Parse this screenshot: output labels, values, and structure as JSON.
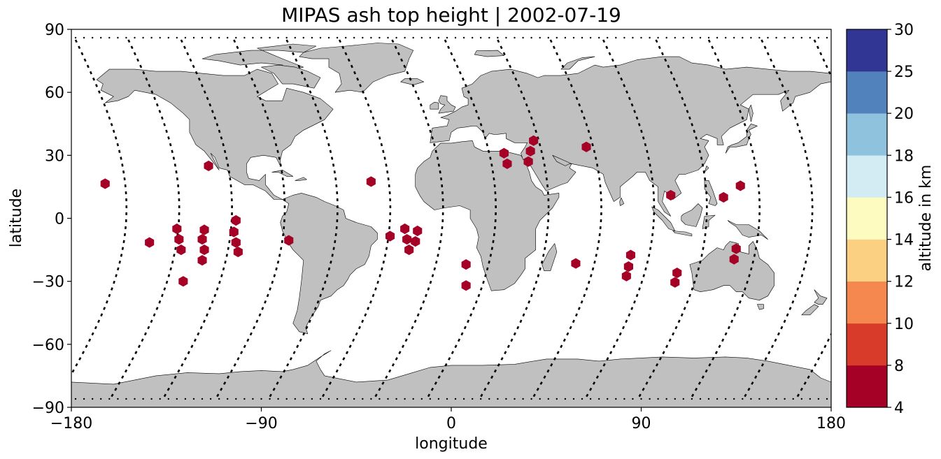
{
  "title": "MIPAS ash top height | 2002-07-19",
  "chart_data": {
    "type": "scatter",
    "title": "MIPAS ash top height | 2002-07-19",
    "xlabel": "longitude",
    "ylabel": "latitude",
    "xlim": [
      -180,
      180
    ],
    "ylim": [
      -90,
      90
    ],
    "xticks": [
      {
        "value": -180,
        "label": "−180"
      },
      {
        "value": -90,
        "label": "−90"
      },
      {
        "value": 0,
        "label": "0"
      },
      {
        "value": 90,
        "label": "90"
      },
      {
        "value": 180,
        "label": "180"
      }
    ],
    "yticks": [
      {
        "value": 90,
        "label": "90"
      },
      {
        "value": 60,
        "label": "60"
      },
      {
        "value": 30,
        "label": "30"
      },
      {
        "value": 0,
        "label": "0"
      },
      {
        "value": -30,
        "label": "−30"
      },
      {
        "value": -60,
        "label": "−60"
      },
      {
        "value": -90,
        "label": "−90"
      }
    ],
    "grid": false,
    "land_color": "#c0c0c0",
    "track_color": "#000000",
    "marker": "hexagon",
    "marker_color": "#a50026",
    "ash_points": [
      {
        "lon": -164,
        "lat": 16.5
      },
      {
        "lon": -143,
        "lat": -11.5
      },
      {
        "lon": -130,
        "lat": -5
      },
      {
        "lon": -129,
        "lat": -10
      },
      {
        "lon": -128,
        "lat": -15
      },
      {
        "lon": -127,
        "lat": -30
      },
      {
        "lon": -117,
        "lat": -5.5
      },
      {
        "lon": -118,
        "lat": -10
      },
      {
        "lon": -117,
        "lat": -15
      },
      {
        "lon": -118,
        "lat": -20
      },
      {
        "lon": -115,
        "lat": 25
      },
      {
        "lon": -102,
        "lat": -1
      },
      {
        "lon": -103,
        "lat": -6.5
      },
      {
        "lon": -102,
        "lat": -11.5
      },
      {
        "lon": -101,
        "lat": -16
      },
      {
        "lon": -77,
        "lat": -10.5
      },
      {
        "lon": -38,
        "lat": 17.5
      },
      {
        "lon": -29,
        "lat": -8.5
      },
      {
        "lon": -22,
        "lat": -5
      },
      {
        "lon": -21,
        "lat": -10
      },
      {
        "lon": -20,
        "lat": -15
      },
      {
        "lon": -17,
        "lat": -11
      },
      {
        "lon": -16,
        "lat": -6
      },
      {
        "lon": 7,
        "lat": -22
      },
      {
        "lon": 7,
        "lat": -32
      },
      {
        "lon": 25,
        "lat": 31
      },
      {
        "lon": 26.5,
        "lat": 26
      },
      {
        "lon": 37.5,
        "lat": 32
      },
      {
        "lon": 36.5,
        "lat": 27
      },
      {
        "lon": 39,
        "lat": 37
      },
      {
        "lon": 59,
        "lat": -21.5
      },
      {
        "lon": 64,
        "lat": 34
      },
      {
        "lon": 83,
        "lat": -27.5
      },
      {
        "lon": 84,
        "lat": -23
      },
      {
        "lon": 85,
        "lat": -17.5
      },
      {
        "lon": 104,
        "lat": 11
      },
      {
        "lon": 107,
        "lat": -26
      },
      {
        "lon": 106,
        "lat": -30.5
      },
      {
        "lon": 129,
        "lat": 10
      },
      {
        "lon": 135,
        "lat": -14.5
      },
      {
        "lon": 134,
        "lat": -19.5
      },
      {
        "lon": 137,
        "lat": 15.5
      }
    ],
    "colorbar": {
      "label": "altitude in km",
      "boundaries": [
        4,
        8,
        10,
        12,
        14,
        16,
        18,
        20,
        25,
        30
      ],
      "tick_labels": [
        "4",
        "8",
        "10",
        "12",
        "14",
        "16",
        "18",
        "20",
        "25",
        "30"
      ],
      "colors": [
        "#a50026",
        "#d73027",
        "#f46d43",
        "#fdae61",
        "#fee090",
        "#ffffbf",
        "#e0f3f8",
        "#abd9e9",
        "#74add1",
        "#4575b4",
        "#313695"
      ],
      "bin_colors": [
        "#a50026",
        "#d93b2b",
        "#f5884f",
        "#fcd083",
        "#fefbc0",
        "#d3ebf3",
        "#8fc3dd",
        "#5282bc",
        "#313695"
      ]
    }
  }
}
